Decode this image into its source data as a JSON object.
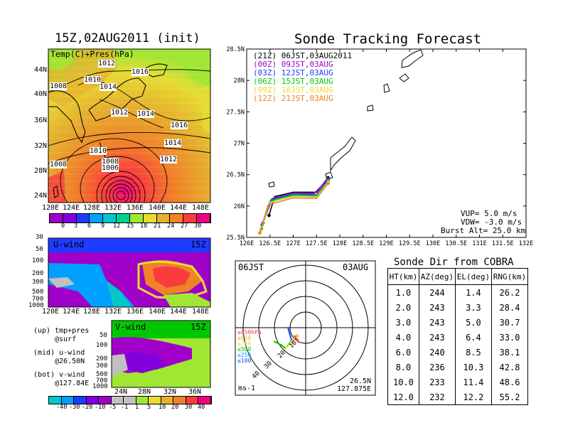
{
  "left": {
    "title": "15Z,02AUG2011 (init)",
    "map_label": "Temp(C)+Pres(hPa)",
    "lat_labels": [
      "44N",
      "40N",
      "36N",
      "32N",
      "28N",
      "24N"
    ],
    "lon_labels": [
      "120E",
      "124E",
      "128E",
      "132E",
      "136E",
      "140E",
      "144E",
      "148E"
    ],
    "isobars": [
      "1012",
      "1016",
      "1008",
      "1010",
      "1014",
      "1012",
      "1014",
      "1016",
      "1014",
      "1010",
      "1008",
      "1006",
      "1012",
      "1008"
    ],
    "temp_ticks": [
      "0",
      "3",
      "6",
      "9",
      "12",
      "15",
      "18",
      "21",
      "24",
      "27",
      "30"
    ],
    "temp_colors": [
      "#a000c8",
      "#8200dc",
      "#1e3cff",
      "#00a0ff",
      "#00c8c8",
      "#00d28c",
      "#a0e632",
      "#e6dc32",
      "#e6af2d",
      "#f08228",
      "#fa3c3c",
      "#f00082"
    ],
    "uwind_label": "U-wind",
    "uwind_time": "15Z",
    "uwind_levels": [
      "30",
      "50",
      "100",
      "200",
      "300",
      "500",
      "700",
      "1000"
    ],
    "uwind_lons": [
      "120E",
      "124E",
      "128E",
      "132E",
      "136E",
      "140E",
      "144E",
      "148E"
    ],
    "vwind_label": "V-wind",
    "vwind_time": "15Z",
    "vwind_levels": [
      "50",
      "100",
      "200",
      "300",
      "500",
      "700",
      "1000"
    ],
    "vwind_lats": [
      "24N",
      "28N",
      "32N",
      "36N"
    ],
    "notes": [
      "(up) tmp+pres",
      "@surf",
      "(mid) u-wind",
      "@26.50N",
      "(bot) v-wind",
      "@127.84E"
    ],
    "wind_ticks": [
      "-40",
      "-30",
      "-20",
      "-10",
      "-5",
      "-1",
      "1",
      "5",
      "10",
      "20",
      "30",
      "40"
    ],
    "wind_colors": [
      "#00c8c8",
      "#00a0ff",
      "#1e3cff",
      "#8200dc",
      "#a000c8",
      "#c0c0c0",
      "#c0c0c0",
      "#a0e632",
      "#e6dc32",
      "#e6af2d",
      "#f08228",
      "#fa3c3c",
      "#f00082"
    ]
  },
  "tracking": {
    "title": "Sonde Tracking Forecast",
    "legend": [
      {
        "text": "(21Z) 06JST,03AUG2011",
        "color": "#000000"
      },
      {
        "text": "(00Z) 09JST,03AUG",
        "color": "#a000c8"
      },
      {
        "text": "(03Z) 12JST,03AUG",
        "color": "#1e3cff"
      },
      {
        "text": "(06Z) 15JST,03AUG",
        "color": "#00c800"
      },
      {
        "text": "(09Z) 18JST,03AUG",
        "color": "#e6dc32"
      },
      {
        "text": "(12Z) 21JST,03AUG",
        "color": "#f08228"
      }
    ],
    "info": [
      "VUP= 5.0 m/s",
      "VDW= -3.0 m/s",
      "Burst Alt= 25.0 km"
    ]
  },
  "chart_data": [
    {
      "type": "line",
      "title": "Sonde Tracking Forecast",
      "xlim": [
        126,
        132
      ],
      "ylim": [
        25.5,
        28.5
      ],
      "x_ticks": [
        "126E",
        "126.5E",
        "127E",
        "127.5E",
        "128E",
        "128.5E",
        "129E",
        "129.5E",
        "130E",
        "130.5E",
        "131E",
        "131.5E",
        "132E"
      ],
      "y_ticks": [
        "25.5N",
        "26N",
        "26.5N",
        "27N",
        "27.5N",
        "28N",
        "28.5N"
      ],
      "series": [
        {
          "name": "(21Z) 06JST,03AUG2011",
          "color": "#000000",
          "points": [
            [
              126.48,
              25.85
            ],
            [
              126.6,
              26.15
            ],
            [
              127.0,
              26.22
            ],
            [
              127.5,
              26.22
            ],
            [
              127.75,
              26.45
            ]
          ]
        },
        {
          "name": "(00Z) 09JST,03AUG",
          "color": "#a000c8",
          "points": [
            [
              126.35,
              25.73
            ],
            [
              126.55,
              26.12
            ],
            [
              127.0,
              26.2
            ],
            [
              127.45,
              26.2
            ],
            [
              127.75,
              26.43
            ]
          ]
        },
        {
          "name": "(03Z) 12JST,03AUG",
          "color": "#1e3cff",
          "points": [
            [
              126.33,
              25.7
            ],
            [
              126.52,
              26.1
            ],
            [
              127.0,
              26.19
            ],
            [
              127.5,
              26.18
            ],
            [
              127.75,
              26.42
            ]
          ]
        },
        {
          "name": "(06Z) 15JST,03AUG",
          "color": "#00c800",
          "points": [
            [
              126.32,
              25.64
            ],
            [
              126.5,
              26.08
            ],
            [
              127.0,
              26.17
            ],
            [
              127.5,
              26.16
            ],
            [
              127.75,
              26.4
            ]
          ]
        },
        {
          "name": "(09Z) 18JST,03AUG",
          "color": "#e6dc32",
          "points": [
            [
              126.3,
              25.6
            ],
            [
              126.48,
              26.05
            ],
            [
              127.0,
              26.15
            ],
            [
              127.5,
              26.14
            ],
            [
              127.75,
              26.38
            ]
          ]
        },
        {
          "name": "(12Z) 21JST,03AUG",
          "color": "#f08228",
          "points": [
            [
              126.28,
              25.57
            ],
            [
              126.46,
              26.02
            ],
            [
              127.0,
              26.13
            ],
            [
              127.5,
              26.12
            ],
            [
              127.75,
              26.36
            ]
          ]
        }
      ]
    },
    {
      "type": "table",
      "title": "Sonde Dir from COBRA",
      "columns": [
        "HT(km)",
        "AZ(deg)",
        "EL(deg)",
        "RNG(km)"
      ],
      "rows": [
        [
          "1.0",
          "244",
          "1.4",
          "26.2"
        ],
        [
          "2.0",
          "243",
          "3.3",
          "28.4"
        ],
        [
          "3.0",
          "243",
          "5.0",
          "30.7"
        ],
        [
          "4.0",
          "243",
          "6.4",
          "33.0"
        ],
        [
          "6.0",
          "240",
          "8.5",
          "38.1"
        ],
        [
          "8.0",
          "236",
          "10.3",
          "42.8"
        ],
        [
          "10.0",
          "233",
          "11.4",
          "48.6"
        ],
        [
          "12.0",
          "232",
          "12.2",
          "55.2"
        ]
      ]
    }
  ],
  "polar": {
    "time": "06JST",
    "date": "03AUG",
    "unit": "ms-1",
    "ring_labels": [
      "10",
      "20",
      "30",
      "40"
    ],
    "levels": [
      {
        "text": "≥850hPa",
        "color": "#fa3c3c"
      },
      {
        "text": "≤850",
        "color": "#e6af2d"
      },
      {
        "text": "≤700",
        "color": "#e6dc32"
      },
      {
        "text": "≤500",
        "color": "#00c800"
      },
      {
        "text": "≤250",
        "color": "#00a0ff"
      },
      {
        "text": "≤100",
        "color": "#1e3cff"
      }
    ],
    "loc_lat": "26.5N",
    "loc_lon": "127.875E"
  }
}
